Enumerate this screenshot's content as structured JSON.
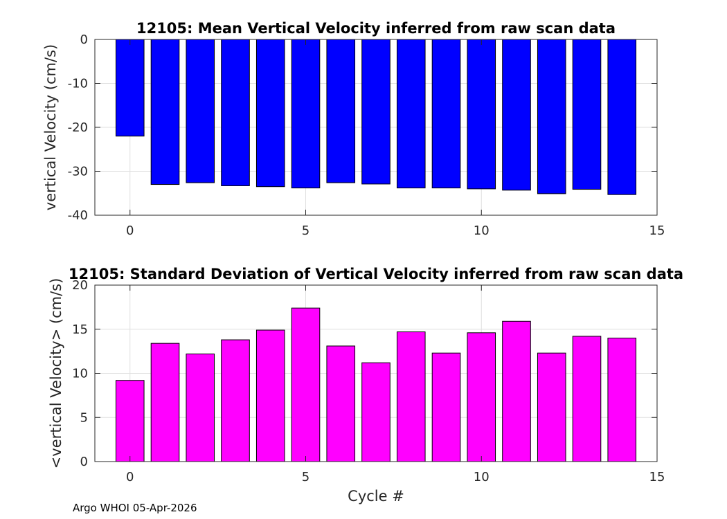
{
  "chart_data": [
    {
      "type": "bar",
      "title": "12105: Mean Vertical Velocity inferred from raw scan data",
      "xlabel": "",
      "ylabel": "vertical Velocity (cm/s)",
      "x": [
        0,
        1,
        2,
        3,
        4,
        5,
        6,
        7,
        8,
        9,
        10,
        11,
        12,
        13,
        14
      ],
      "values": [
        -22.0,
        -33.0,
        -32.6,
        -33.3,
        -33.5,
        -33.8,
        -32.6,
        -32.9,
        -33.8,
        -33.8,
        -34.0,
        -34.3,
        -35.1,
        -34.1,
        -35.3
      ],
      "xlim": [
        -1,
        15
      ],
      "ylim": [
        -40,
        0
      ],
      "xticks": [
        0,
        5,
        10,
        15
      ],
      "yticks": [
        0,
        -10,
        -20,
        -30,
        -40
      ],
      "xtick_labels": [
        "0",
        "5",
        "10",
        "15"
      ],
      "ytick_labels": [
        "0",
        "-10",
        "-20",
        "-30",
        "-40"
      ],
      "bar_color": "#0000ff",
      "grid": true
    },
    {
      "type": "bar",
      "title": "12105: Standard Deviation of Vertical Velocity inferred from raw scan data",
      "xlabel": "Cycle #",
      "ylabel": "<vertical Velocity> (cm/s)",
      "x": [
        0,
        1,
        2,
        3,
        4,
        5,
        6,
        7,
        8,
        9,
        10,
        11,
        12,
        13,
        14
      ],
      "values": [
        9.2,
        13.4,
        12.2,
        13.8,
        14.9,
        17.4,
        13.1,
        11.2,
        14.7,
        12.3,
        14.6,
        15.9,
        12.3,
        14.2,
        14.0
      ],
      "xlim": [
        -1,
        15
      ],
      "ylim": [
        0,
        20
      ],
      "xticks": [
        0,
        5,
        10,
        15
      ],
      "yticks": [
        0,
        5,
        10,
        15,
        20
      ],
      "xtick_labels": [
        "0",
        "5",
        "10",
        "15"
      ],
      "ytick_labels": [
        "0",
        "5",
        "10",
        "15",
        "20"
      ],
      "bar_color": "#ff00ff",
      "grid": true
    }
  ],
  "footer": "Argo WHOI 05-Apr-2026"
}
